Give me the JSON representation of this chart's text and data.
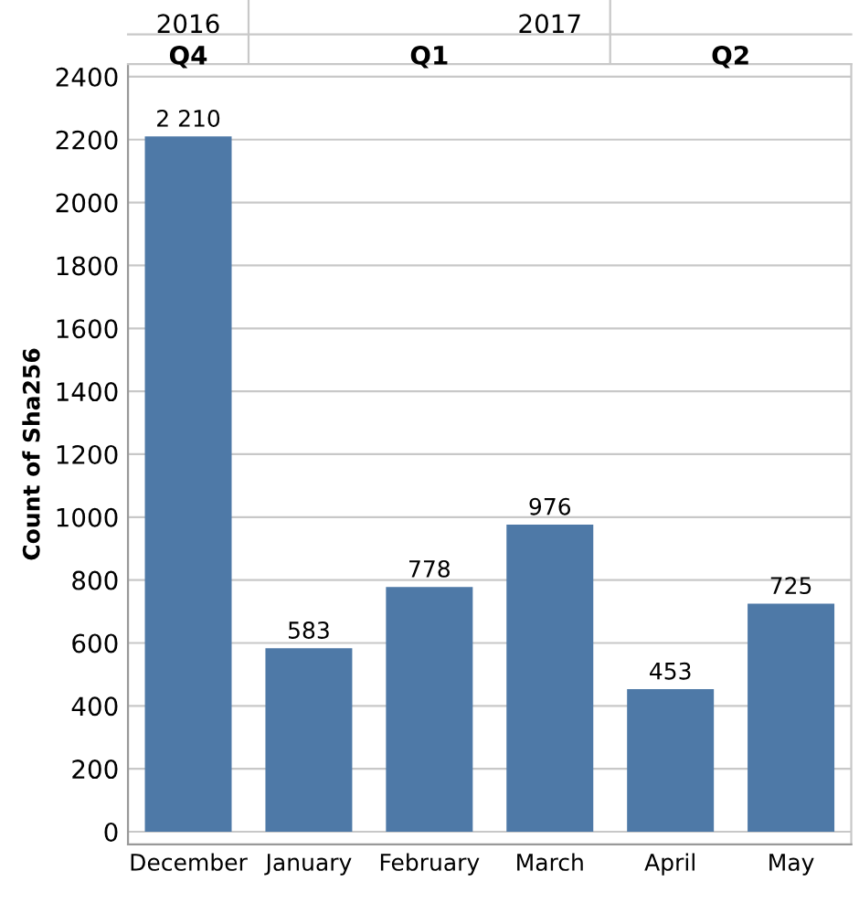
{
  "chart_data": {
    "type": "bar",
    "ylabel": "Count of Sha256",
    "categories": [
      "December",
      "January",
      "February",
      "March",
      "April",
      "May"
    ],
    "values": [
      2210,
      583,
      778,
      976,
      453,
      725
    ],
    "value_labels": [
      "2 210",
      "583",
      "778",
      "976",
      "453",
      "725"
    ],
    "color": "#4e79a7",
    "ylim": [
      -40,
      2440
    ],
    "yticks": [
      0,
      200,
      400,
      600,
      800,
      1000,
      1200,
      1400,
      1600,
      1800,
      2000,
      2200,
      2400
    ],
    "grid": "y",
    "annotations": [
      "2016",
      "Q4",
      "2017",
      "Q1",
      "Q2"
    ]
  }
}
